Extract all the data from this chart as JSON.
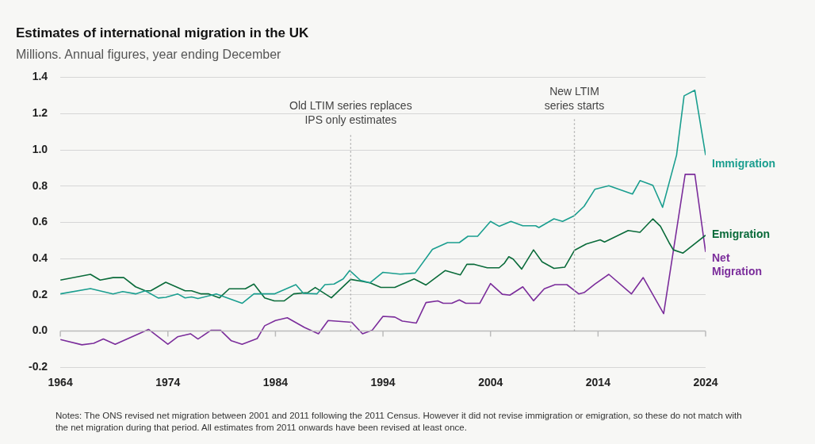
{
  "chart_data": {
    "type": "line",
    "title": "Estimates of international migration in the UK",
    "subtitle": "Millions. Annual figures, year ending December",
    "x": [
      1964,
      1966.8,
      1968.9,
      1969.8,
      1971.0,
      1971.9,
      1973.1,
      1973.8,
      1974.9,
      1975.6,
      1976.2,
      1976.8,
      1978.5,
      1980.9,
      1982.0,
      1983.9,
      1985.9,
      1986.6,
      1987.85,
      1988.6,
      1989.45,
      1990.3,
      1990.9,
      1991.9,
      1992.8,
      1994.0,
      1995.6,
      1997.0,
      1998.6,
      2000.0,
      2001.1,
      2001.9,
      2002.8,
      2004.0,
      2004.8,
      2005.9,
      2007.0,
      2008.2,
      2008.5,
      2009.9,
      2010.7,
      2011.8,
      2012.7,
      2013.7,
      2015.0,
      2017.2,
      2017.9,
      2019.1,
      2020.0,
      2021.3,
      2022.0,
      2023.0,
      2024.0
    ],
    "series": [
      {
        "name": "Immigration",
        "color": "#1a9e8f",
        "values": [
          0.205,
          0.234,
          0.205,
          0.218,
          0.205,
          0.222,
          0.182,
          0.186,
          0.205,
          0.183,
          0.188,
          0.179,
          0.205,
          0.153,
          0.205,
          0.205,
          0.256,
          0.208,
          0.205,
          0.256,
          0.259,
          0.288,
          0.334,
          0.28,
          0.266,
          0.324,
          0.314,
          0.32,
          0.451,
          0.488,
          0.488,
          0.523,
          0.523,
          0.605,
          0.578,
          0.605,
          0.581,
          0.581,
          0.571,
          0.619,
          0.605,
          0.637,
          0.688,
          0.782,
          0.802,
          0.756,
          0.83,
          0.804,
          0.683,
          0.971,
          1.298,
          1.329,
          0.971
        ]
      },
      {
        "name": "Emigration",
        "color": "#0a6b3a",
        "x": [
          1964,
          1966.8,
          1967.7,
          1968.9,
          1969.9,
          1971.0,
          1971.9,
          1972.4,
          1973.8,
          1975.6,
          1976.2,
          1977.1,
          1977.8,
          1978.8,
          1979.7,
          1981.2,
          1982.0,
          1983.0,
          1983.9,
          1984.8,
          1985.7,
          1987.0,
          1987.7,
          1989.2,
          1991.0,
          1991.9,
          1992.8,
          1993.8,
          1995.1,
          1996.9,
          1998.0,
          1999.8,
          2001.2,
          2001.8,
          2002.5,
          2003.7,
          2004.8,
          2005.3,
          2005.7,
          2006.1,
          2006.9,
          2008.0,
          2008.8,
          2009.9,
          2010.9,
          2011.8,
          2012.9,
          2014.2,
          2014.6,
          2016.8,
          2017.9,
          2019.1,
          2019.8,
          2020.6,
          2021.0,
          2021.9,
          2024.0
        ],
        "values": [
          0.281,
          0.313,
          0.281,
          0.295,
          0.295,
          0.244,
          0.222,
          0.222,
          0.269,
          0.222,
          0.222,
          0.205,
          0.205,
          0.183,
          0.233,
          0.233,
          0.259,
          0.183,
          0.166,
          0.166,
          0.205,
          0.212,
          0.24,
          0.183,
          0.285,
          0.276,
          0.266,
          0.241,
          0.241,
          0.288,
          0.254,
          0.334,
          0.31,
          0.368,
          0.368,
          0.349,
          0.349,
          0.375,
          0.41,
          0.397,
          0.342,
          0.448,
          0.382,
          0.346,
          0.352,
          0.445,
          0.48,
          0.503,
          0.491,
          0.555,
          0.545,
          0.619,
          0.578,
          0.488,
          0.448,
          0.43,
          0.529
        ]
      },
      {
        "name": "Net\nMigration",
        "color": "#7b2d9b",
        "x": [
          1964,
          1966.0,
          1967.1,
          1968.0,
          1969.1,
          1972.2,
          1974.0,
          1974.9,
          1976.1,
          1976.8,
          1978.0,
          1978.9,
          1979.9,
          1980.9,
          1982.3,
          1983.0,
          1984.0,
          1985.1,
          1986.7,
          1988.0,
          1988.9,
          1991.1,
          1992.1,
          1993.0,
          1994.0,
          1995.1,
          1995.8,
          1997.1,
          1998.0,
          1999.1,
          1999.6,
          2000.4,
          2001.1,
          2001.7,
          2003.0,
          2004.0,
          2005.1,
          2005.8,
          2007.0,
          2008.0,
          2009.0,
          2010.0,
          2011.1,
          2012.2,
          2012.7,
          2013.7,
          2015.0,
          2017.1,
          2018.2,
          2020.1,
          2022.1,
          2023.0,
          2024.0
        ],
        "values": [
          -0.047,
          -0.076,
          -0.068,
          -0.044,
          -0.073,
          0.009,
          -0.073,
          -0.032,
          -0.015,
          -0.044,
          0.004,
          0.004,
          -0.054,
          -0.073,
          -0.042,
          0.029,
          0.058,
          0.073,
          0.02,
          -0.015,
          0.058,
          0.048,
          -0.015,
          0.004,
          0.081,
          0.077,
          0.055,
          0.044,
          0.157,
          0.166,
          0.153,
          0.153,
          0.172,
          0.153,
          0.153,
          0.262,
          0.203,
          0.198,
          0.244,
          0.167,
          0.233,
          0.256,
          0.256,
          0.205,
          0.212,
          0.259,
          0.313,
          0.205,
          0.295,
          0.096,
          0.865,
          0.865,
          0.436
        ]
      }
    ],
    "xlim": [
      1964,
      2024
    ],
    "xticks": [
      1964,
      1974,
      1984,
      1994,
      2004,
      2014,
      2024
    ],
    "ylim": [
      -0.2,
      1.4
    ],
    "yticks": [
      -0.2,
      {
        "value": 0,
        "label": "0.0"
      },
      0.2,
      0.4,
      0.6,
      0.8,
      {
        "value": 1,
        "label": "1.0"
      },
      1.2,
      1.4
    ],
    "grid": "y",
    "legend": false,
    "marker": "none",
    "line_style": "solid",
    "ref_lines": [
      {
        "axis": "x",
        "value": 1991,
        "color": "#aaaaaa",
        "line_style": "dotted",
        "label": "Old LTIM series replaces IPS only estimates"
      },
      {
        "axis": "x",
        "value": 2011.8,
        "color": "#aaaaaa",
        "line_style": "dotted",
        "label": "New LTIM series starts"
      }
    ],
    "annotations": [
      "Notes: The ONS revised net migration between 2001 and 2011 following the 2011 Census. However it did not revise immigration or emigration, so these do not match with the net migration during that period. All estimates from 2011 onwards have been revised at least once."
    ]
  }
}
